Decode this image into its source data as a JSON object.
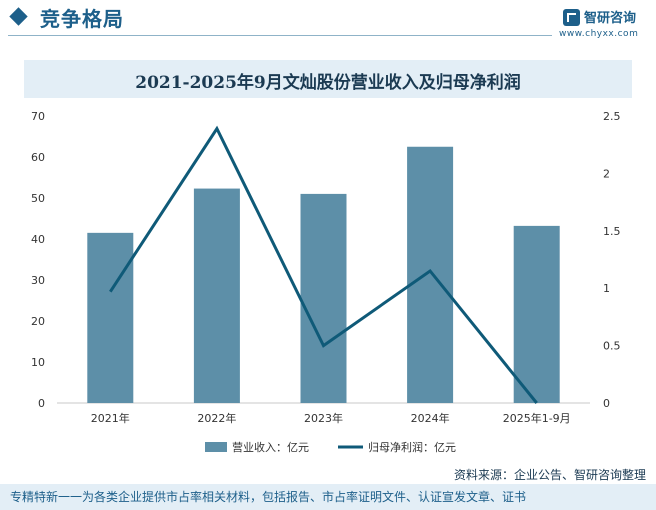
{
  "header": {
    "section_title": "竞争格局",
    "brand_name": "智研咨询",
    "brand_url": "www.chyxx.com"
  },
  "colors": {
    "bar": "#5d8fa8",
    "line": "#0f5a78",
    "accent": "#1d5f8a",
    "title_bg": "#e3eef6"
  },
  "chart_data": {
    "type": "bar",
    "title": "2021-2025年9月文灿股份营业收入及归母净利润",
    "categories": [
      "2021年",
      "2022年",
      "2023年",
      "2024年",
      "2025年1-9月"
    ],
    "series": [
      {
        "name": "营业收入：亿元",
        "type": "bar",
        "axis": "left",
        "values": [
          41.5,
          52.3,
          51.0,
          62.5,
          43.2
        ]
      },
      {
        "name": "归母净利润：亿元",
        "type": "line",
        "axis": "right",
        "values": [
          0.97,
          2.39,
          0.5,
          1.15,
          0.0
        ]
      }
    ],
    "y_left": {
      "min": 0,
      "max": 70,
      "ticks": [
        "0",
        "10",
        "20",
        "30",
        "40",
        "50",
        "60",
        "70"
      ]
    },
    "y_right": {
      "min": 0,
      "max": 2.5,
      "ticks": [
        "0",
        "0.5",
        "1",
        "1.5",
        "2",
        "2.5"
      ]
    },
    "legend": {
      "position": "bottom"
    },
    "grid": false
  },
  "footer": {
    "source": "资料来源：企业公告、智研咨询整理",
    "tagline": "专精特新一一为各类企业提供市占率相关材料，包括报告、市占率证明文件、认证宣发文章、证书"
  }
}
